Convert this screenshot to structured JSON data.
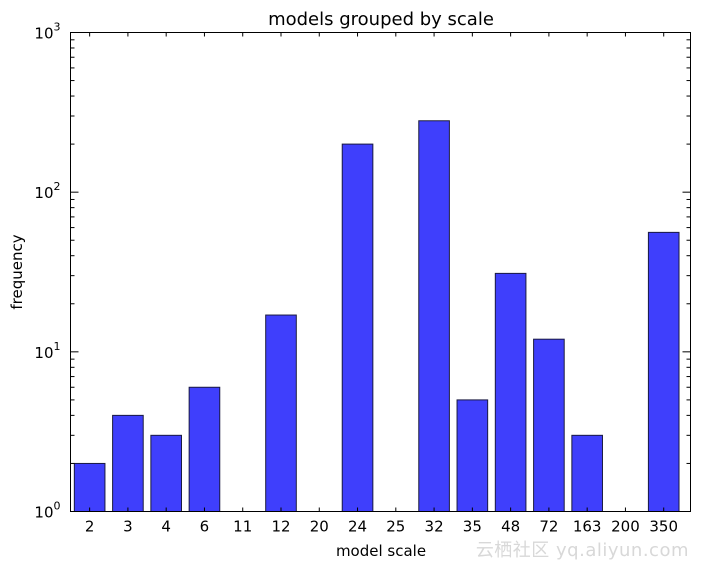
{
  "chart_data": {
    "type": "bar",
    "title": "models grouped by scale",
    "xlabel": "model scale",
    "ylabel": "frequency",
    "yscale": "log",
    "ylim": [
      1,
      1000
    ],
    "yticks": [
      {
        "base": "10",
        "exp": "0"
      },
      {
        "base": "10",
        "exp": "1"
      },
      {
        "base": "10",
        "exp": "2"
      },
      {
        "base": "10",
        "exp": "3"
      }
    ],
    "categories": [
      "2",
      "3",
      "4",
      "6",
      "11",
      "12",
      "20",
      "24",
      "25",
      "32",
      "35",
      "48",
      "72",
      "163",
      "200",
      "350"
    ],
    "values": [
      2,
      4,
      3,
      6,
      1,
      17,
      1,
      200,
      1,
      280,
      5,
      31,
      12,
      3,
      1,
      56
    ],
    "bar_color": "#3f3ffc",
    "grid": false,
    "legend": "none"
  },
  "watermark": "云栖社区 yq.aliyun.com"
}
